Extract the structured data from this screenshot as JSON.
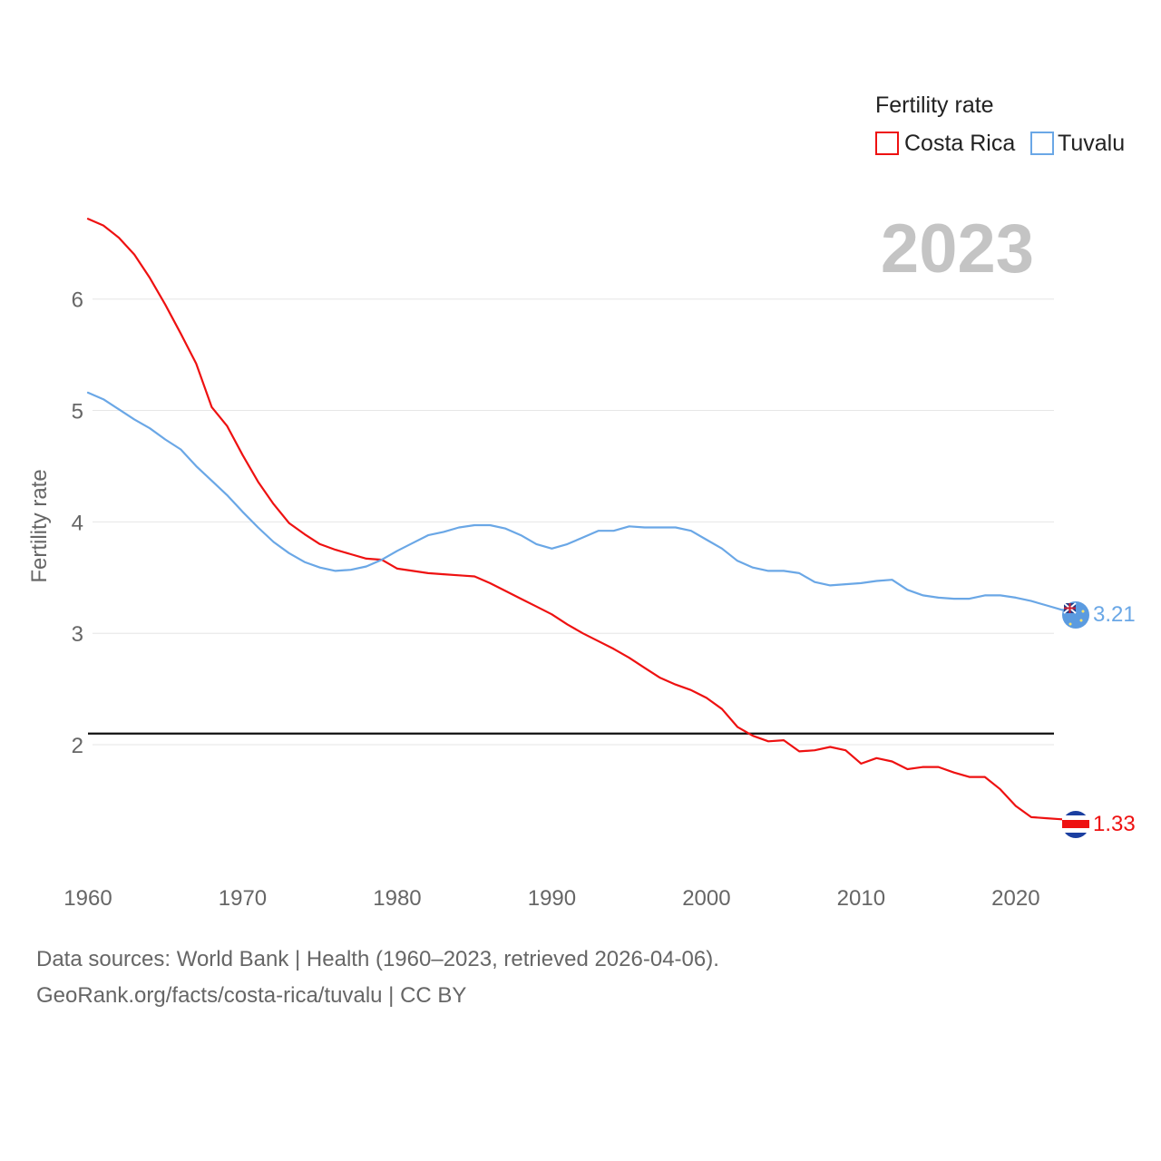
{
  "chart_data": {
    "type": "line",
    "ylabel": "Fertility rate",
    "xlabel": "",
    "xlim": [
      1960,
      2023
    ],
    "ylim": [
      0.95,
      6.95
    ],
    "x_ticks": [
      1960,
      1970,
      1980,
      1990,
      2000,
      2010,
      2020
    ],
    "y_ticks": [
      2,
      3,
      4,
      5,
      6
    ],
    "grid": true,
    "reference_line": {
      "value": 2.1,
      "color": "#111111"
    },
    "current_year": "2023",
    "legend": {
      "title": "Fertility rate",
      "placement": "top-right"
    },
    "x": [
      1960,
      1961,
      1962,
      1963,
      1964,
      1965,
      1966,
      1967,
      1968,
      1969,
      1970,
      1971,
      1972,
      1973,
      1974,
      1975,
      1976,
      1977,
      1978,
      1979,
      1980,
      1981,
      1982,
      1983,
      1984,
      1985,
      1986,
      1987,
      1988,
      1989,
      1990,
      1991,
      1992,
      1993,
      1994,
      1995,
      1996,
      1997,
      1998,
      1999,
      2000,
      2001,
      2002,
      2003,
      2004,
      2005,
      2006,
      2007,
      2008,
      2009,
      2010,
      2011,
      2012,
      2013,
      2014,
      2015,
      2016,
      2017,
      2018,
      2019,
      2020,
      2021,
      2022,
      2023
    ],
    "series": [
      {
        "name": "Costa Rica",
        "color": "#ee1111",
        "end_label": "1.33",
        "values": [
          6.72,
          6.66,
          6.55,
          6.4,
          6.19,
          5.95,
          5.69,
          5.42,
          5.03,
          4.86,
          4.6,
          4.36,
          4.16,
          3.99,
          3.89,
          3.8,
          3.75,
          3.71,
          3.67,
          3.66,
          3.58,
          3.56,
          3.54,
          3.53,
          3.52,
          3.51,
          3.45,
          3.38,
          3.31,
          3.24,
          3.17,
          3.08,
          3.0,
          2.93,
          2.86,
          2.78,
          2.69,
          2.6,
          2.54,
          2.49,
          2.42,
          2.32,
          2.16,
          2.08,
          2.03,
          2.04,
          1.94,
          1.95,
          1.98,
          1.95,
          1.83,
          1.88,
          1.85,
          1.78,
          1.8,
          1.8,
          1.75,
          1.71,
          1.71,
          1.6,
          1.45,
          1.35,
          1.34,
          1.33
        ]
      },
      {
        "name": "Tuvalu",
        "color": "#6aa7e6",
        "end_label": "3.21",
        "values": [
          5.16,
          5.1,
          5.01,
          4.92,
          4.84,
          4.74,
          4.65,
          4.5,
          4.37,
          4.24,
          4.09,
          3.95,
          3.82,
          3.72,
          3.64,
          3.59,
          3.56,
          3.57,
          3.6,
          3.66,
          3.74,
          3.81,
          3.88,
          3.91,
          3.95,
          3.97,
          3.97,
          3.94,
          3.88,
          3.8,
          3.76,
          3.8,
          3.86,
          3.92,
          3.92,
          3.96,
          3.95,
          3.95,
          3.95,
          3.92,
          3.84,
          3.76,
          3.65,
          3.59,
          3.56,
          3.56,
          3.54,
          3.46,
          3.43,
          3.44,
          3.45,
          3.47,
          3.48,
          3.39,
          3.34,
          3.32,
          3.31,
          3.31,
          3.34,
          3.34,
          3.32,
          3.29,
          3.25,
          3.21
        ]
      }
    ]
  },
  "footer": {
    "line1": "Data sources: World Bank | Health (1960–2023, retrieved 2026-04-06).",
    "line2": "GeoRank.org/facts/costa-rica/tuvalu | CC BY"
  }
}
